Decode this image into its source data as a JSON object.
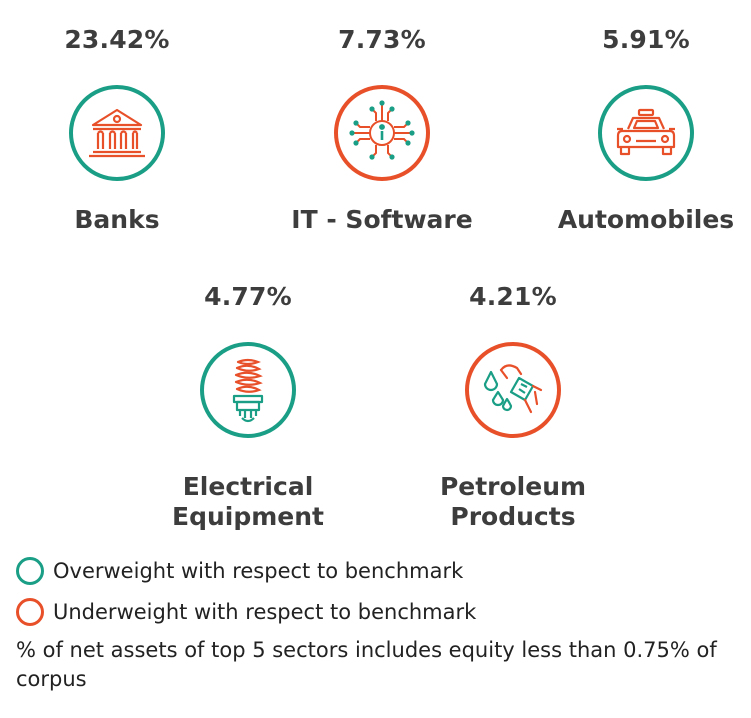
{
  "colors": {
    "overweight": "#1a9e85",
    "underweight": "#e8502a",
    "text": "#3d3d3d"
  },
  "sectors": [
    {
      "name": "Banks",
      "percent": "23.42%",
      "weight": "overweight",
      "icon": "bank-icon"
    },
    {
      "name": "IT - Software",
      "percent": "7.73%",
      "weight": "underweight",
      "icon": "chip-icon"
    },
    {
      "name": "Automobiles",
      "percent": "5.91%",
      "weight": "overweight",
      "icon": "car-icon"
    },
    {
      "name": "Electrical Equipment",
      "percent": "4.77%",
      "weight": "overweight",
      "icon": "bulb-icon"
    },
    {
      "name": "Petroleum Products",
      "percent": "4.21%",
      "weight": "underweight",
      "icon": "fuel-nozzle-icon"
    }
  ],
  "legend": [
    {
      "label": "Overweight with respect to benchmark",
      "weight": "overweight"
    },
    {
      "label": "Underweight with respect to benchmark",
      "weight": "underweight"
    }
  ],
  "footnote": "% of net assets of top 5 sectors includes equity less than 0.75% of corpus"
}
